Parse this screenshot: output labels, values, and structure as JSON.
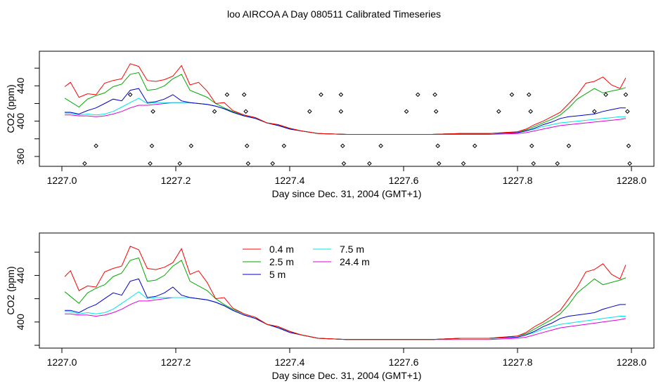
{
  "title": "loo AIRCOA A  Day 080511  Calibrated Timeseries",
  "chart_data": [
    {
      "type": "line",
      "xlabel": "Day since Dec. 31, 2004 (GMT+1)",
      "ylabel": "CO2 (ppm)",
      "xlim": [
        1227.0,
        1228.0
      ],
      "ylim": [
        352,
        476
      ],
      "xticks": [
        "1227.0",
        "1227.2",
        "1227.4",
        "1227.6",
        "1227.8",
        "1228.0"
      ],
      "xtick_values": [
        1227.0,
        1227.2,
        1227.4,
        1227.6,
        1227.8,
        1228.0
      ],
      "yticks": [
        "360",
        "400",
        "440"
      ],
      "ytick_values": [
        360,
        400,
        440
      ],
      "series": [
        {
          "name": "0.4 m",
          "color": "#ff0000",
          "x": [
            1227.005,
            1227.015,
            1227.03,
            1227.045,
            1227.06,
            1227.075,
            1227.09,
            1227.105,
            1227.12,
            1227.135,
            1227.15,
            1227.165,
            1227.18,
            1227.195,
            1227.21,
            1227.225,
            1227.24,
            1227.255,
            1227.27,
            1227.285,
            1227.3,
            1227.32,
            1227.34,
            1227.36,
            1227.38,
            1227.4,
            1227.42,
            1227.45,
            1227.5,
            1227.55,
            1227.6,
            1227.65,
            1227.7,
            1227.75,
            1227.8,
            1227.815,
            1227.83,
            1227.845,
            1227.86,
            1227.875,
            1227.89,
            1227.905,
            1227.92,
            1227.935,
            1227.95,
            1227.965,
            1227.98,
            1227.99
          ],
          "y": [
            439,
            444,
            427,
            431,
            430,
            443,
            446,
            448,
            465,
            462,
            446,
            445,
            447,
            451,
            463,
            441,
            444,
            434,
            420,
            421,
            412,
            407,
            404,
            398,
            396,
            392,
            389,
            386,
            385,
            385,
            385,
            385,
            386,
            386,
            388,
            391,
            396,
            400,
            405,
            410,
            420,
            430,
            443,
            445,
            450,
            441,
            437,
            449
          ]
        },
        {
          "name": "2.5 m",
          "color": "#00aa00",
          "x": [
            1227.005,
            1227.015,
            1227.03,
            1227.045,
            1227.06,
            1227.075,
            1227.09,
            1227.105,
            1227.12,
            1227.135,
            1227.15,
            1227.165,
            1227.18,
            1227.195,
            1227.21,
            1227.225,
            1227.24,
            1227.255,
            1227.27,
            1227.285,
            1227.3,
            1227.32,
            1227.34,
            1227.36,
            1227.38,
            1227.4,
            1227.42,
            1227.45,
            1227.5,
            1227.55,
            1227.6,
            1227.65,
            1227.7,
            1227.75,
            1227.8,
            1227.815,
            1227.83,
            1227.845,
            1227.86,
            1227.875,
            1227.89,
            1227.905,
            1227.92,
            1227.935,
            1227.95,
            1227.965,
            1227.98,
            1227.99
          ],
          "y": [
            426,
            422,
            416,
            425,
            429,
            432,
            439,
            442,
            453,
            455,
            435,
            436,
            440,
            448,
            453,
            435,
            431,
            427,
            420,
            415,
            411,
            407,
            404,
            398,
            396,
            392,
            389,
            386,
            385,
            385,
            385,
            385,
            386,
            386,
            388,
            390,
            394,
            398,
            402,
            407,
            415,
            425,
            431,
            437,
            432,
            434,
            436,
            438
          ]
        },
        {
          "name": "5 m",
          "color": "#0000cc",
          "x": [
            1227.005,
            1227.015,
            1227.03,
            1227.045,
            1227.06,
            1227.075,
            1227.09,
            1227.105,
            1227.12,
            1227.135,
            1227.15,
            1227.165,
            1227.18,
            1227.195,
            1227.21,
            1227.225,
            1227.24,
            1227.255,
            1227.27,
            1227.285,
            1227.3,
            1227.32,
            1227.34,
            1227.36,
            1227.38,
            1227.4,
            1227.42,
            1227.45,
            1227.5,
            1227.55,
            1227.6,
            1227.65,
            1227.7,
            1227.75,
            1227.8,
            1227.815,
            1227.83,
            1227.845,
            1227.86,
            1227.875,
            1227.89,
            1227.905,
            1227.92,
            1227.935,
            1227.95,
            1227.965,
            1227.98,
            1227.99
          ],
          "y": [
            410,
            410,
            408,
            412,
            415,
            420,
            425,
            423,
            435,
            437,
            421,
            422,
            425,
            430,
            423,
            421,
            420,
            419,
            417,
            414,
            410,
            406,
            403,
            398,
            395,
            391,
            389,
            386,
            385,
            385,
            385,
            385,
            386,
            386,
            387,
            389,
            392,
            396,
            399,
            403,
            405,
            406,
            407,
            408,
            411,
            413,
            415,
            415
          ]
        },
        {
          "name": "7.5 m",
          "color": "#00e5e5",
          "x": [
            1227.005,
            1227.015,
            1227.03,
            1227.045,
            1227.06,
            1227.075,
            1227.09,
            1227.105,
            1227.12,
            1227.135,
            1227.15,
            1227.165,
            1227.18,
            1227.195,
            1227.21,
            1227.225,
            1227.24,
            1227.255,
            1227.27,
            1227.285,
            1227.3,
            1227.32,
            1227.34,
            1227.36,
            1227.38,
            1227.4,
            1227.42,
            1227.45,
            1227.5,
            1227.55,
            1227.6,
            1227.65,
            1227.7,
            1227.75,
            1227.8,
            1227.815,
            1227.83,
            1227.845,
            1227.86,
            1227.875,
            1227.89,
            1227.905,
            1227.92,
            1227.935,
            1227.95,
            1227.965,
            1227.98,
            1227.99
          ],
          "y": [
            409,
            409,
            407,
            408,
            407,
            408,
            411,
            416,
            421,
            426,
            420,
            421,
            421,
            421,
            421,
            421,
            420,
            419,
            417,
            414,
            410,
            406,
            403,
            398,
            395,
            392,
            389,
            386,
            385,
            385,
            385,
            385,
            386,
            386,
            387,
            389,
            391,
            394,
            396,
            398,
            399,
            400,
            401,
            402,
            403,
            404,
            405,
            405
          ]
        },
        {
          "name": "24.4 m",
          "color": "#dd00dd",
          "x": [
            1227.005,
            1227.015,
            1227.03,
            1227.045,
            1227.06,
            1227.075,
            1227.09,
            1227.105,
            1227.12,
            1227.135,
            1227.15,
            1227.165,
            1227.18,
            1227.195,
            1227.21,
            1227.225,
            1227.24,
            1227.255,
            1227.27,
            1227.285,
            1227.3,
            1227.32,
            1227.34,
            1227.36,
            1227.38,
            1227.4,
            1227.42,
            1227.45,
            1227.5,
            1227.55,
            1227.6,
            1227.65,
            1227.7,
            1227.75,
            1227.8,
            1227.815,
            1227.83,
            1227.845,
            1227.86,
            1227.875,
            1227.89,
            1227.905,
            1227.92,
            1227.935,
            1227.95,
            1227.965,
            1227.98,
            1227.99
          ],
          "y": [
            407,
            407,
            406,
            406,
            405,
            406,
            408,
            411,
            415,
            418,
            418,
            419,
            420,
            421,
            421,
            421,
            420,
            419,
            417,
            414,
            410,
            406,
            403,
            398,
            395,
            391,
            389,
            386,
            385,
            385,
            385,
            385,
            385,
            385,
            386,
            387,
            389,
            391,
            393,
            395,
            396,
            397,
            398,
            399,
            400,
            401,
            402,
            403
          ]
        }
      ],
      "scatter": {
        "x": [
          1227.04,
          1227.06,
          1227.12,
          1227.155,
          1227.158,
          1227.16,
          1227.207,
          1227.227,
          1227.268,
          1227.29,
          1227.32,
          1227.323,
          1227.325,
          1227.327,
          1227.37,
          1227.39,
          1227.435,
          1227.455,
          1227.49,
          1227.49,
          1227.493,
          1227.495,
          1227.54,
          1227.56,
          1227.605,
          1227.625,
          1227.655,
          1227.657,
          1227.66,
          1227.662,
          1227.705,
          1227.725,
          1227.767,
          1227.79,
          1227.82,
          1227.823,
          1227.825,
          1227.828,
          1227.87,
          1227.89,
          1227.935,
          1227.955,
          1227.99,
          1227.993,
          1227.995,
          1227.997
        ],
        "y": [
          352,
          372,
          430,
          352,
          372,
          411,
          352,
          372,
          411,
          430,
          430,
          411,
          372,
          352,
          352,
          372,
          411,
          430,
          430,
          411,
          372,
          352,
          352,
          372,
          411,
          430,
          430,
          411,
          372,
          352,
          352,
          372,
          411,
          430,
          430,
          411,
          372,
          352,
          352,
          372,
          411,
          430,
          430,
          411,
          372,
          352
        ]
      }
    },
    {
      "type": "line",
      "xlabel": "Day since Dec. 31, 2004 (GMT+1)",
      "ylabel": "CO2 (ppm)",
      "xlim": [
        1227.0,
        1228.0
      ],
      "ylim": [
        380,
        474
      ],
      "xticks": [
        "1227.0",
        "1227.2",
        "1227.4",
        "1227.6",
        "1227.8",
        "1228.0"
      ],
      "xtick_values": [
        1227.0,
        1227.2,
        1227.4,
        1227.6,
        1227.8,
        1228.0
      ],
      "yticks": [
        "400",
        "440"
      ],
      "ytick_values": [
        400,
        440
      ],
      "legend": [
        {
          "label": "0.4 m",
          "color": "#ff0000"
        },
        {
          "label": "2.5 m",
          "color": "#00aa00"
        },
        {
          "label": "5 m",
          "color": "#0000cc"
        },
        {
          "label": "7.5 m",
          "color": "#00e5e5"
        },
        {
          "label": "24.4 m",
          "color": "#dd00dd"
        }
      ],
      "legend_position": "top-left",
      "same_series_as_top": true
    }
  ]
}
